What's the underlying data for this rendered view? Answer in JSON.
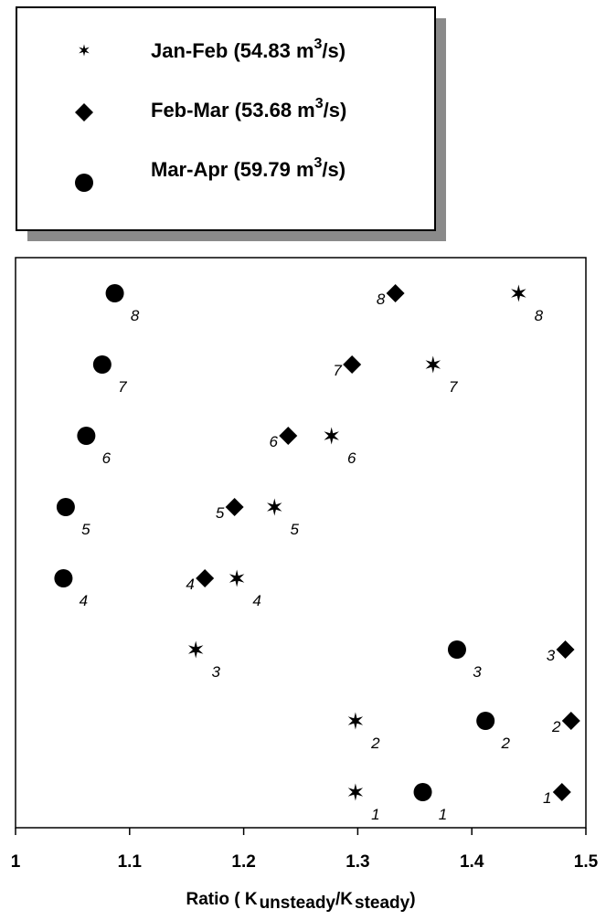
{
  "chart_data": {
    "type": "scatter",
    "xlim": [
      1,
      1.5
    ],
    "ylim": [
      0.5,
      8.5
    ],
    "xlabel_main": "Ratio ( K",
    "xlabel_sub1": "unsteady",
    "xlabel_mid": "/K",
    "xlabel_sub2": "steady",
    "xlabel_end": ")",
    "x_ticks": [
      1,
      1.1,
      1.2,
      1.3,
      1.4,
      1.5
    ],
    "x_tick_labels": [
      "1",
      "1.1",
      "1.2",
      "1.3",
      "1.4",
      "1.5"
    ],
    "grid": false,
    "legend_position": "top-left, outside plot",
    "series": [
      {
        "legend_label": "Jan-Feb (54.83 m",
        "legend_sup": "3",
        "legend_end": "/s)",
        "marker": "star",
        "points": [
          {
            "x": 1.298,
            "y": 1,
            "label": "1"
          },
          {
            "x": 1.298,
            "y": 2,
            "label": "2"
          },
          {
            "x": 1.158,
            "y": 3,
            "label": "3"
          },
          {
            "x": 1.194,
            "y": 4,
            "label": "4"
          },
          {
            "x": 1.227,
            "y": 5,
            "label": "5"
          },
          {
            "x": 1.277,
            "y": 6,
            "label": "6"
          },
          {
            "x": 1.366,
            "y": 7,
            "label": "7"
          },
          {
            "x": 1.441,
            "y": 8,
            "label": "8"
          }
        ]
      },
      {
        "legend_label": "Feb-Mar (53.68 m",
        "legend_sup": "3",
        "legend_end": "/s)",
        "marker": "diamond",
        "points": [
          {
            "x": 1.479,
            "y": 1,
            "label": "1"
          },
          {
            "x": 1.487,
            "y": 2,
            "label": "2"
          },
          {
            "x": 1.482,
            "y": 3,
            "label": "3"
          },
          {
            "x": 1.166,
            "y": 4,
            "label": "4"
          },
          {
            "x": 1.192,
            "y": 5,
            "label": "5"
          },
          {
            "x": 1.239,
            "y": 6,
            "label": "6"
          },
          {
            "x": 1.295,
            "y": 7,
            "label": "7"
          },
          {
            "x": 1.333,
            "y": 8,
            "label": "8"
          }
        ]
      },
      {
        "legend_label": "Mar-Apr (59.79 m",
        "legend_sup": "3",
        "legend_end": "/s)",
        "marker": "circle",
        "points": [
          {
            "x": 1.357,
            "y": 1,
            "label": "1"
          },
          {
            "x": 1.412,
            "y": 2,
            "label": "2"
          },
          {
            "x": 1.387,
            "y": 3,
            "label": "3"
          },
          {
            "x": 1.042,
            "y": 4,
            "label": "4"
          },
          {
            "x": 1.044,
            "y": 5,
            "label": "5"
          },
          {
            "x": 1.062,
            "y": 6,
            "label": "6"
          },
          {
            "x": 1.076,
            "y": 7,
            "label": "7"
          },
          {
            "x": 1.087,
            "y": 8,
            "label": "8"
          }
        ]
      }
    ]
  }
}
